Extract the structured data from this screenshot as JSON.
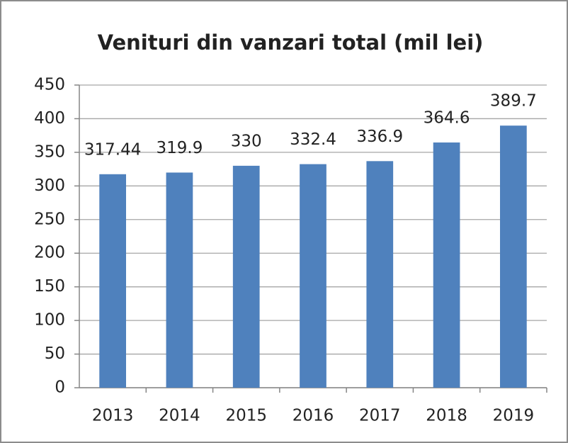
{
  "chart_data": {
    "type": "bar",
    "title": "Venituri din vanzari total (mil lei)",
    "categories": [
      "2013",
      "2014",
      "2015",
      "2016",
      "2017",
      "2018",
      "2019"
    ],
    "values": [
      317.44,
      319.9,
      330,
      332.4,
      336.9,
      364.6,
      389.7
    ],
    "color": "#4f81bd",
    "ylim": [
      0,
      450
    ],
    "yticks": [
      0,
      50,
      100,
      150,
      200,
      250,
      300,
      350,
      400,
      450
    ],
    "grid": true
  }
}
